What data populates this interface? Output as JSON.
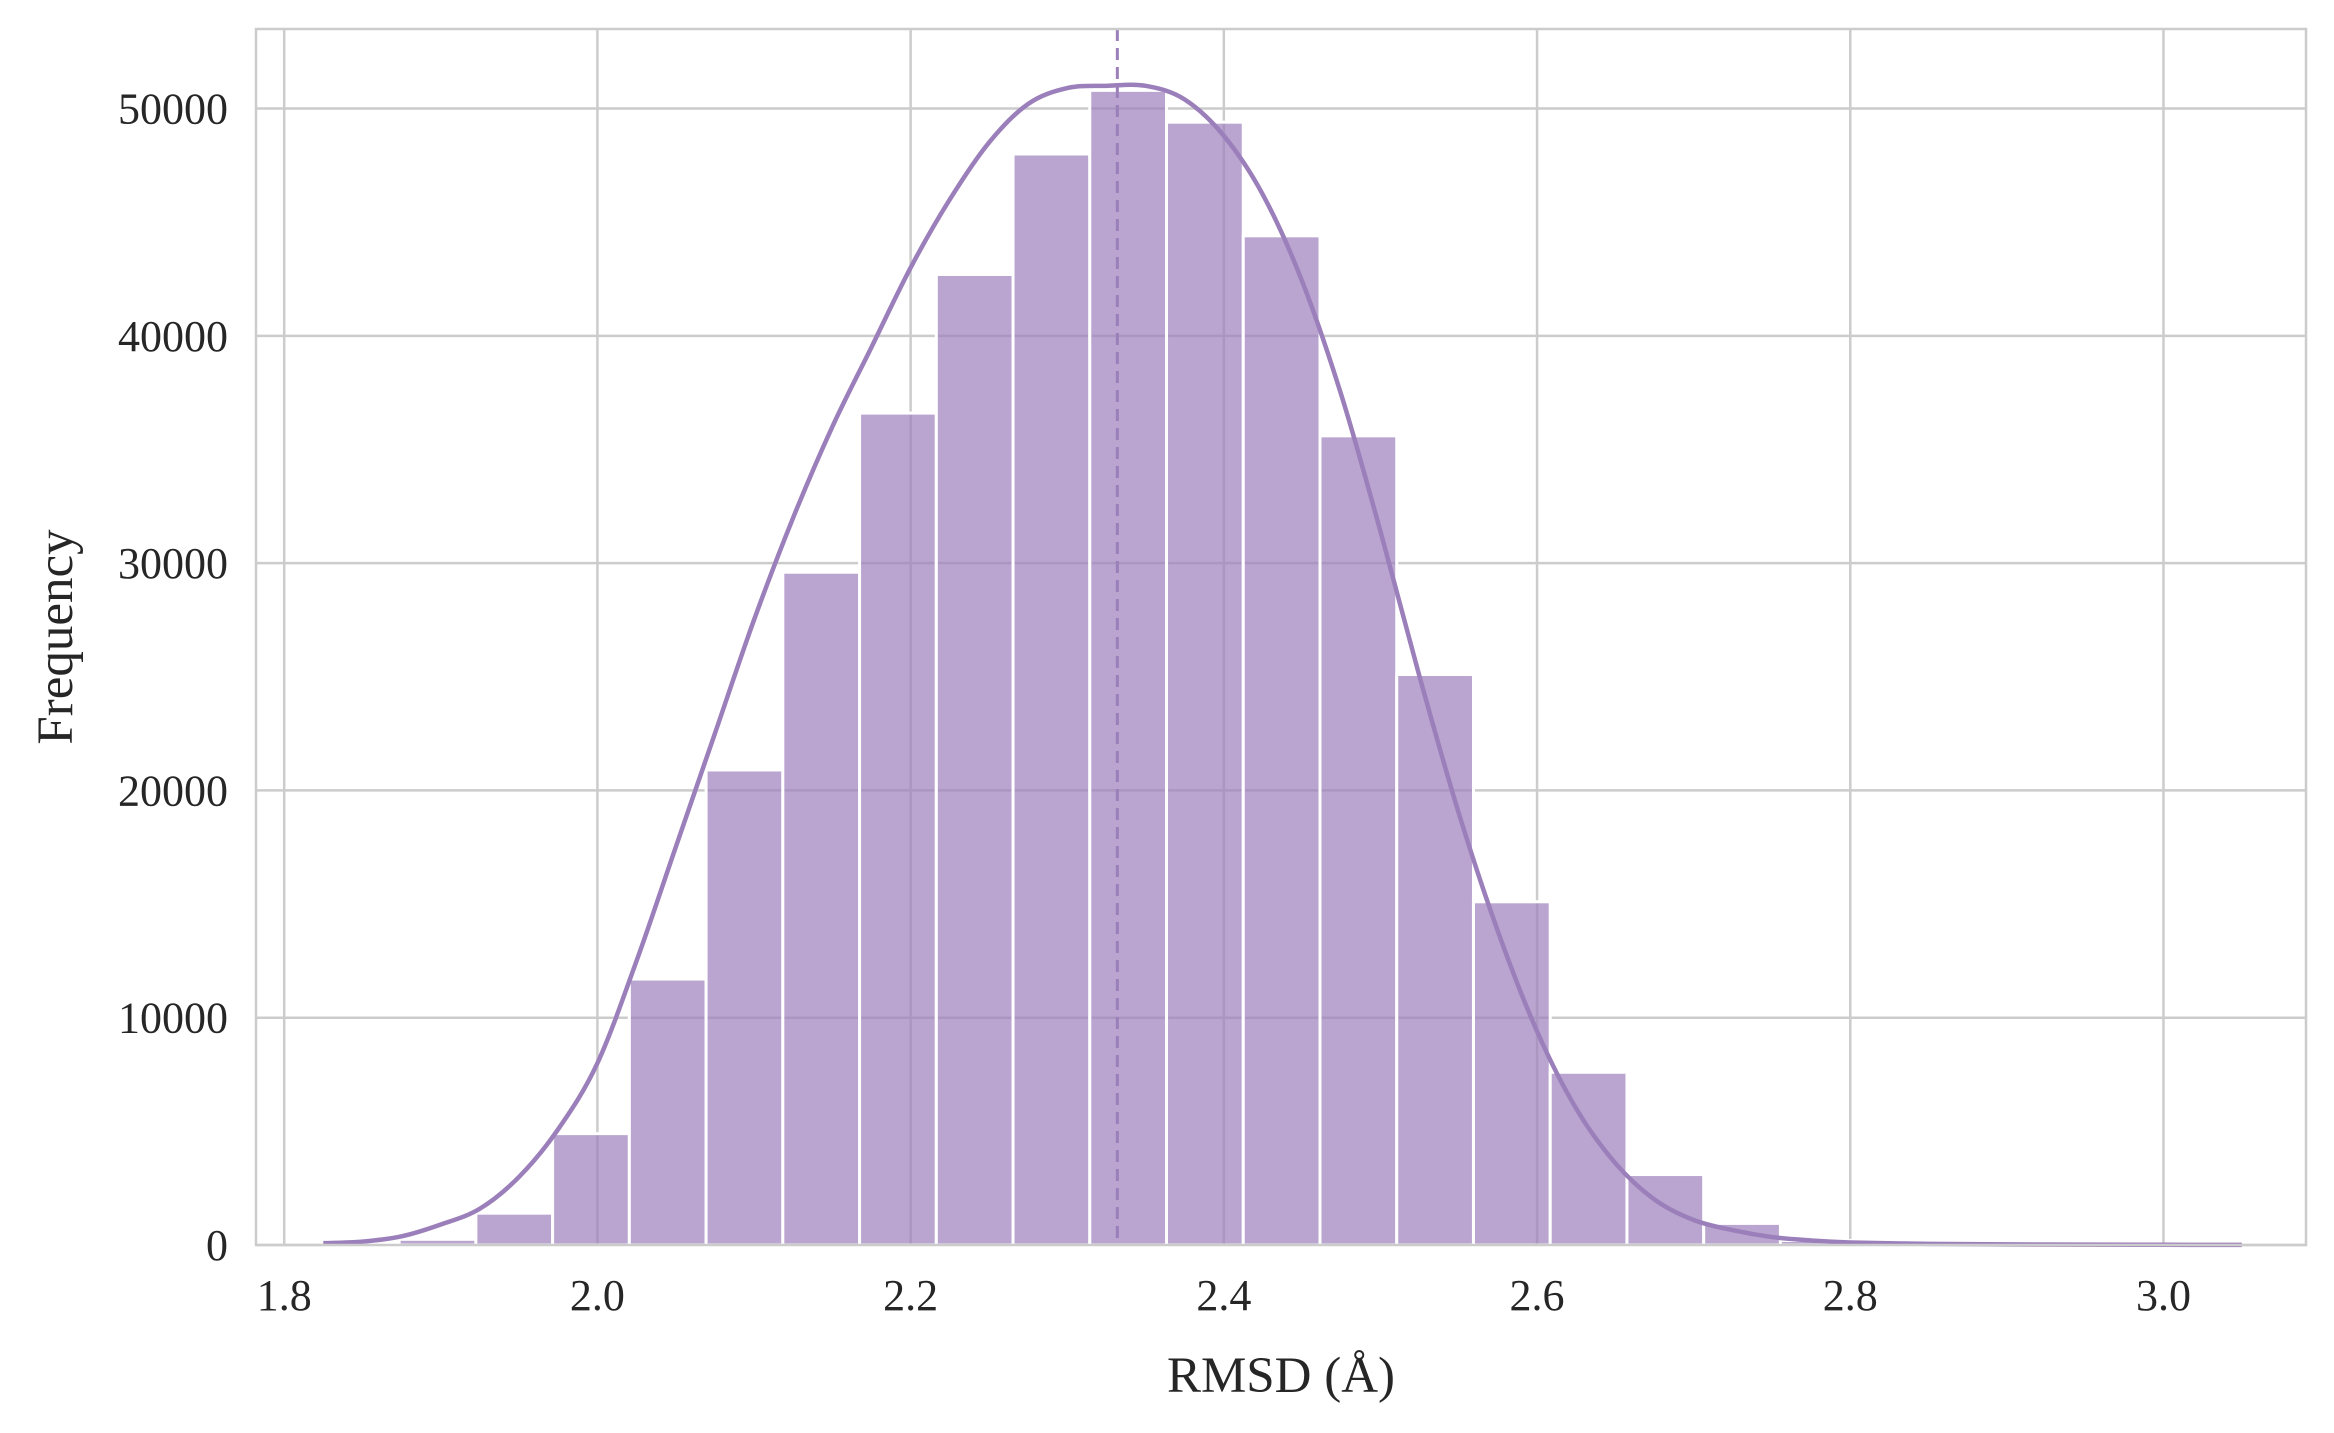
{
  "chart_data": {
    "type": "bar",
    "xlabel": "RMSD (Å)",
    "ylabel": "Frequency",
    "xlim": [
      1.782,
      3.091
    ],
    "ylim": [
      0,
      53500
    ],
    "xticks": [
      1.8,
      2.0,
      2.2,
      2.4,
      2.6,
      2.8,
      3.0
    ],
    "xtick_labels": [
      "1.8",
      "2.0",
      "2.2",
      "2.4",
      "2.6",
      "2.8",
      "3.0"
    ],
    "yticks": [
      0,
      10000,
      20000,
      30000,
      40000,
      50000
    ],
    "ytick_labels": [
      "0",
      "10000",
      "20000",
      "30000",
      "40000",
      "50000"
    ],
    "grid": true,
    "bar_color": "#9b7fba",
    "bar_alpha": 0.7,
    "line_color": "#9b7fba",
    "bins": [
      {
        "x0": 1.8244,
        "x1": 1.8734,
        "value": 30
      },
      {
        "x0": 1.8734,
        "x1": 1.9224,
        "value": 250
      },
      {
        "x0": 1.9224,
        "x1": 1.9714,
        "value": 1400
      },
      {
        "x0": 1.9714,
        "x1": 2.0204,
        "value": 4900
      },
      {
        "x0": 2.0204,
        "x1": 2.0694,
        "value": 11700
      },
      {
        "x0": 2.0694,
        "x1": 2.1184,
        "value": 20900
      },
      {
        "x0": 2.1184,
        "x1": 2.1674,
        "value": 29600
      },
      {
        "x0": 2.1674,
        "x1": 2.2164,
        "value": 36600
      },
      {
        "x0": 2.2164,
        "x1": 2.2654,
        "value": 42700
      },
      {
        "x0": 2.2654,
        "x1": 2.3144,
        "value": 48000
      },
      {
        "x0": 2.3144,
        "x1": 2.3634,
        "value": 50800
      },
      {
        "x0": 2.3634,
        "x1": 2.4124,
        "value": 49400
      },
      {
        "x0": 2.4124,
        "x1": 2.4614,
        "value": 44400
      },
      {
        "x0": 2.4614,
        "x1": 2.5104,
        "value": 35600
      },
      {
        "x0": 2.5104,
        "x1": 2.5594,
        "value": 25100
      },
      {
        "x0": 2.5594,
        "x1": 2.6084,
        "value": 15100
      },
      {
        "x0": 2.6084,
        "x1": 2.6574,
        "value": 7600
      },
      {
        "x0": 2.6574,
        "x1": 2.7064,
        "value": 3100
      },
      {
        "x0": 2.7064,
        "x1": 2.7554,
        "value": 950
      },
      {
        "x0": 2.7554,
        "x1": 2.8044,
        "value": 200
      },
      {
        "x0": 2.8044,
        "x1": 2.8534,
        "value": 50
      },
      {
        "x0": 2.8534,
        "x1": 2.9024,
        "value": 15
      },
      {
        "x0": 2.9024,
        "x1": 2.9514,
        "value": 5
      },
      {
        "x0": 2.9514,
        "x1": 3.0004,
        "value": 2
      },
      {
        "x0": 3.0004,
        "x1": 3.0494,
        "value": 1
      }
    ],
    "kde": {
      "x": [
        1.825,
        1.85,
        1.875,
        1.9,
        1.925,
        1.95,
        1.975,
        2.0,
        2.025,
        2.05,
        2.075,
        2.1,
        2.125,
        2.15,
        2.175,
        2.2,
        2.225,
        2.25,
        2.275,
        2.3,
        2.325,
        2.35,
        2.375,
        2.4,
        2.425,
        2.45,
        2.475,
        2.5,
        2.525,
        2.55,
        2.575,
        2.6,
        2.625,
        2.65,
        2.675,
        2.7,
        2.725,
        2.75,
        2.775,
        2.8,
        2.85,
        2.9,
        2.95,
        3.0,
        3.05
      ],
      "y": [
        80,
        150,
        380,
        900,
        1600,
        3000,
        5100,
        8000,
        12500,
        17500,
        22500,
        27500,
        32000,
        36000,
        39500,
        43000,
        46000,
        48500,
        50200,
        50900,
        51000,
        51000,
        50400,
        48800,
        46200,
        42400,
        37400,
        31400,
        25000,
        19000,
        13800,
        9400,
        6000,
        3600,
        2000,
        1100,
        650,
        350,
        200,
        110,
        50,
        25,
        15,
        10,
        5
      ]
    },
    "mean_line": {
      "x": 2.332,
      "style": "dashed"
    }
  }
}
